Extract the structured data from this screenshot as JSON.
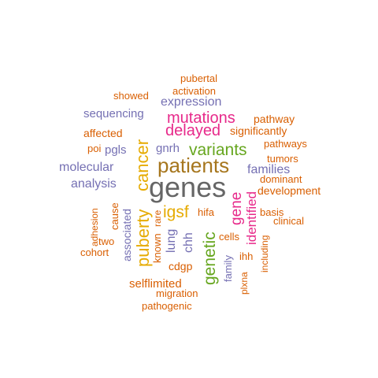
{
  "colors": {
    "orange": "#d95f02",
    "purple": "#7570b3",
    "magenta": "#e7298a",
    "green": "#66a61e",
    "gold": "#e6ab02",
    "brown": "#a6761d",
    "gray": "#666666"
  },
  "words": [
    {
      "text": "genes",
      "color": "#666666",
      "weight": 100
    },
    {
      "text": "patients",
      "color": "#a6761d",
      "weight": 78
    },
    {
      "text": "cancer",
      "color": "#e6ab02",
      "weight": 58
    },
    {
      "text": "puberty",
      "color": "#e6ab02",
      "weight": 56
    },
    {
      "text": "genetic",
      "color": "#66a61e",
      "weight": 54
    },
    {
      "text": "variants",
      "color": "#66a61e",
      "weight": 52
    },
    {
      "text": "igsf",
      "color": "#e6ab02",
      "weight": 56
    },
    {
      "text": "delayed",
      "color": "#e7298a",
      "weight": 50
    },
    {
      "text": "mutations",
      "color": "#e7298a",
      "weight": 50
    },
    {
      "text": "gene",
      "color": "#e7298a",
      "weight": 46
    },
    {
      "text": "identified",
      "color": "#e7298a",
      "weight": 44
    },
    {
      "text": "expression",
      "color": "#7570b3",
      "weight": 40
    },
    {
      "text": "molecular",
      "color": "#7570b3",
      "weight": 38
    },
    {
      "text": "families",
      "color": "#7570b3",
      "weight": 38
    },
    {
      "text": "analysis",
      "color": "#7570b3",
      "weight": 38
    },
    {
      "text": "sequencing",
      "color": "#7570b3",
      "weight": 36
    },
    {
      "text": "gnrh",
      "color": "#7570b3",
      "weight": 36
    },
    {
      "text": "pgls",
      "color": "#7570b3",
      "weight": 36
    },
    {
      "text": "lung",
      "color": "#7570b3",
      "weight": 36
    },
    {
      "text": "chh",
      "color": "#7570b3",
      "weight": 36
    },
    {
      "text": "associated",
      "color": "#7570b3",
      "weight": 34
    },
    {
      "text": "family",
      "color": "#7570b3",
      "weight": 30
    },
    {
      "text": "significantly",
      "color": "#d95f02",
      "weight": 32
    },
    {
      "text": "development",
      "color": "#d95f02",
      "weight": 32
    },
    {
      "text": "selflimited",
      "color": "#d95f02",
      "weight": 32
    },
    {
      "text": "pathways",
      "color": "#d95f02",
      "weight": 30
    },
    {
      "text": "pathway",
      "color": "#d95f02",
      "weight": 30
    },
    {
      "text": "tumors",
      "color": "#d95f02",
      "weight": 30
    },
    {
      "text": "dominant",
      "color": "#d95f02",
      "weight": 30
    },
    {
      "text": "cause",
      "color": "#d95f02",
      "weight": 30
    },
    {
      "text": "affected",
      "color": "#d95f02",
      "weight": 30
    },
    {
      "text": "showed",
      "color": "#d95f02",
      "weight": 30
    },
    {
      "text": "activation",
      "color": "#d95f02",
      "weight": 30
    },
    {
      "text": "pubertal",
      "color": "#d95f02",
      "weight": 30
    },
    {
      "text": "poi",
      "color": "#d95f02",
      "weight": 30
    },
    {
      "text": "hifa",
      "color": "#d95f02",
      "weight": 30
    },
    {
      "text": "basis",
      "color": "#d95f02",
      "weight": 30
    },
    {
      "text": "clinical",
      "color": "#d95f02",
      "weight": 30
    },
    {
      "text": "cells",
      "color": "#d95f02",
      "weight": 30
    },
    {
      "text": "ihh",
      "color": "#d95f02",
      "weight": 30
    },
    {
      "text": "including",
      "color": "#d95f02",
      "weight": 30
    },
    {
      "text": "plxna",
      "color": "#d95f02",
      "weight": 28
    },
    {
      "text": "cdgp",
      "color": "#d95f02",
      "weight": 30
    },
    {
      "text": "migration",
      "color": "#d95f02",
      "weight": 30
    },
    {
      "text": "pathogenic",
      "color": "#d95f02",
      "weight": 30
    },
    {
      "text": "rare",
      "color": "#d95f02",
      "weight": 28
    },
    {
      "text": "known",
      "color": "#d95f02",
      "weight": 30
    },
    {
      "text": "two",
      "color": "#d95f02",
      "weight": 30
    },
    {
      "text": "cohort",
      "color": "#d95f02",
      "weight": 30
    },
    {
      "text": "adhesion",
      "color": "#d95f02",
      "weight": 30
    }
  ]
}
